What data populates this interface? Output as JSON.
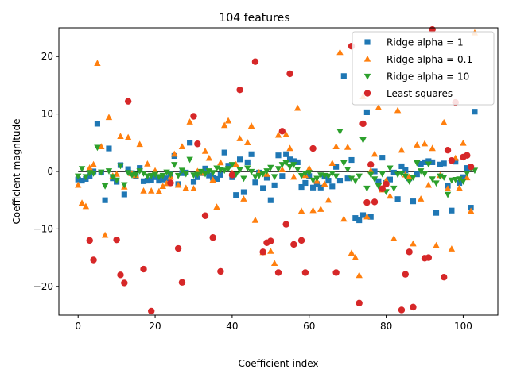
{
  "chart_data": {
    "type": "scatter",
    "title": "104 features",
    "xlabel": "Coefficient index",
    "ylabel": "Coefficient magnitude",
    "xlim": [
      -5,
      109
    ],
    "ylim": [
      -25,
      25
    ],
    "xticks": [
      0,
      20,
      40,
      60,
      80,
      100
    ],
    "yticks": [
      -20,
      -10,
      0,
      10,
      20
    ],
    "hline": 0,
    "legend_position": "top-right",
    "series": [
      {
        "name": "Ridge alpha = 1",
        "marker": "square",
        "color": "#1f77b4",
        "x": [
          0,
          1,
          2,
          3,
          4,
          5,
          6,
          7,
          8,
          9,
          10,
          11,
          12,
          13,
          14,
          15,
          16,
          17,
          18,
          19,
          20,
          21,
          22,
          23,
          24,
          25,
          26,
          27,
          28,
          29,
          30,
          31,
          32,
          33,
          34,
          35,
          36,
          37,
          38,
          39,
          40,
          41,
          42,
          43,
          44,
          45,
          46,
          47,
          48,
          49,
          50,
          51,
          52,
          53,
          54,
          55,
          56,
          57,
          58,
          59,
          60,
          61,
          62,
          63,
          64,
          65,
          66,
          67,
          68,
          69,
          70,
          71,
          72,
          73,
          74,
          75,
          76,
          77,
          78,
          79,
          80,
          81,
          82,
          83,
          84,
          85,
          86,
          87,
          88,
          89,
          90,
          91,
          92,
          93,
          94,
          95,
          96,
          97,
          98,
          99,
          100,
          101,
          102,
          103
        ],
        "y": [
          -1.4,
          -1.6,
          -1.3,
          -0.8,
          0.0,
          8.3,
          -0.2,
          -5.0,
          4.0,
          -1.2,
          -1.8,
          1.1,
          -4.0,
          0.4,
          -0.3,
          -0.8,
          0.6,
          -1.7,
          -1.6,
          -1.5,
          -1.0,
          -1.6,
          -1.4,
          -1.2,
          -0.5,
          2.7,
          -2.2,
          -0.3,
          -0.2,
          5.0,
          -1.8,
          -1.0,
          -0.3,
          0.5,
          -0.7,
          -1.1,
          -1.3,
          -0.6,
          3.3,
          1.0,
          -1.0,
          -4.1,
          2.1,
          -3.6,
          1.6,
          3.0,
          -1.9,
          -0.2,
          -2.9,
          -1.1,
          -5.0,
          -2.4,
          2.8,
          -0.8,
          3.0,
          2.1,
          1.8,
          1.6,
          -2.7,
          -2.0,
          -0.8,
          -2.8,
          -2.2,
          -2.8,
          -0.9,
          -1.6,
          -2.6,
          0.8,
          -1.6,
          16.6,
          -1.2,
          2.0,
          -8.1,
          -8.5,
          -7.6,
          10.3,
          -7.9,
          0.0,
          -1.7,
          2.4,
          -2.0,
          -1.4,
          -0.2,
          -4.8,
          0.9,
          0.2,
          -1.2,
          -5.2,
          -0.5,
          1.3,
          1.6,
          1.8,
          1.6,
          -7.2,
          1.2,
          1.4,
          -2.5,
          -6.8,
          1.7,
          -2.0,
          -1.0,
          0.6,
          -6.3,
          10.4
        ]
      },
      {
        "name": "Ridge alpha = 0.1",
        "marker": "triangle-up",
        "color": "#ff7f0e",
        "x": [
          0,
          1,
          2,
          3,
          4,
          5,
          6,
          7,
          8,
          9,
          10,
          11,
          12,
          13,
          14,
          15,
          16,
          17,
          18,
          19,
          20,
          21,
          22,
          23,
          24,
          25,
          26,
          27,
          28,
          29,
          30,
          31,
          32,
          33,
          34,
          35,
          36,
          37,
          38,
          39,
          40,
          41,
          42,
          43,
          44,
          45,
          46,
          47,
          48,
          49,
          50,
          51,
          52,
          53,
          54,
          55,
          56,
          57,
          58,
          59,
          60,
          61,
          62,
          63,
          64,
          65,
          66,
          67,
          68,
          69,
          70,
          71,
          72,
          73,
          74,
          75,
          76,
          77,
          78,
          79,
          80,
          81,
          82,
          83,
          84,
          85,
          86,
          87,
          88,
          89,
          90,
          91,
          92,
          93,
          94,
          95,
          96,
          97,
          98,
          99,
          100,
          101,
          102,
          103
        ],
        "y": [
          -2.4,
          -5.5,
          -6.1,
          0.6,
          1.2,
          18.8,
          4.3,
          -11.1,
          9.4,
          -0.8,
          -0.5,
          6.1,
          -2.7,
          5.9,
          -0.4,
          -0.7,
          4.7,
          -3.4,
          1.3,
          -3.4,
          0.1,
          -3.5,
          -2.6,
          -2.1,
          -1.0,
          3.0,
          -2.4,
          4.3,
          -2.9,
          8.6,
          -3.0,
          0.0,
          -0.3,
          3.5,
          2.3,
          -1.5,
          -6.2,
          1.5,
          8.0,
          8.8,
          -0.3,
          1.2,
          5.7,
          -4.8,
          5.0,
          7.9,
          -8.5,
          -0.2,
          -14.1,
          -0.5,
          -13.9,
          -16.0,
          6.3,
          0.3,
          6.4,
          4.0,
          -1.0,
          11.0,
          -6.9,
          -0.7,
          0.5,
          -6.8,
          -1.7,
          -6.6,
          -2.2,
          -5.0,
          1.4,
          4.3,
          20.7,
          -8.3,
          4.2,
          -14.2,
          -15.0,
          -18.1,
          13.0,
          -7.9,
          0.1,
          3.0,
          11.1,
          -3.2,
          -1.6,
          -4.3,
          -11.7,
          10.6,
          3.7,
          -0.6,
          -1.0,
          -12.6,
          4.6,
          -4.8,
          4.8,
          -2.4,
          4.0,
          -12.9,
          -0.7,
          8.5,
          -3.0,
          -13.5,
          2.3,
          -2.9,
          4.9,
          -1.1,
          -6.9,
          24.1
        ]
      },
      {
        "name": "Ridge alpha = 10",
        "marker": "triangle-down",
        "color": "#2ca02c",
        "x": [
          0,
          1,
          2,
          3,
          4,
          5,
          6,
          7,
          8,
          9,
          10,
          11,
          12,
          13,
          14,
          15,
          16,
          17,
          18,
          19,
          20,
          21,
          22,
          23,
          24,
          25,
          26,
          27,
          28,
          29,
          30,
          31,
          32,
          33,
          34,
          35,
          36,
          37,
          38,
          39,
          40,
          41,
          42,
          43,
          44,
          45,
          46,
          47,
          48,
          49,
          50,
          51,
          52,
          53,
          54,
          55,
          56,
          57,
          58,
          59,
          60,
          61,
          62,
          63,
          64,
          65,
          66,
          67,
          68,
          69,
          70,
          71,
          72,
          73,
          74,
          75,
          76,
          77,
          78,
          79,
          80,
          81,
          82,
          83,
          84,
          85,
          86,
          87,
          88,
          89,
          90,
          91,
          92,
          93,
          94,
          95,
          96,
          97,
          98,
          99,
          100,
          101,
          102,
          103
        ],
        "y": [
          -0.8,
          0.5,
          -0.9,
          -0.2,
          -0.3,
          4.2,
          -0.1,
          -2.5,
          0.1,
          -0.9,
          -1.5,
          1.0,
          -2.3,
          -0.2,
          -0.6,
          -0.5,
          0.1,
          -0.3,
          -0.8,
          -0.7,
          -0.5,
          -0.9,
          -0.7,
          -0.1,
          -0.5,
          1.2,
          -0.7,
          0.2,
          -0.4,
          2.1,
          -0.6,
          -0.5,
          0.0,
          -0.4,
          0.1,
          -0.2,
          0.6,
          0.3,
          0.2,
          0.5,
          1.2,
          -0.5,
          0.3,
          -1.2,
          0.6,
          0.0,
          -0.9,
          -0.7,
          -0.4,
          0.1,
          0.7,
          -0.9,
          0.5,
          1.2,
          1.5,
          0.8,
          1.2,
          0.4,
          -0.7,
          -0.3,
          -0.2,
          -1.5,
          -1.2,
          -0.6,
          -0.7,
          -0.8,
          -0.3,
          -0.8,
          7.0,
          1.5,
          0.4,
          -1.2,
          -1.6,
          -0.8,
          5.5,
          -2.9,
          -0.5,
          -1.3,
          -2.5,
          -0.4,
          -3.5,
          0.6,
          -2.9,
          -0.5,
          -0.3,
          -0.8,
          -1.7,
          -1.0,
          1.5,
          0.1,
          -0.4,
          1.3,
          -1.3,
          -2.0,
          -0.8,
          -1.0,
          -4.0,
          -1.5,
          -1.4,
          -1.3,
          -1.7,
          -0.3,
          0.6,
          0.2
        ]
      },
      {
        "name": "Least squares",
        "marker": "circle",
        "color": "#d62728",
        "x": [
          3,
          4,
          10,
          11,
          12,
          13,
          17,
          19,
          24,
          26,
          27,
          30,
          31,
          33,
          35,
          37,
          40,
          42,
          46,
          48,
          49,
          50,
          52,
          53,
          54,
          55,
          56,
          58,
          59,
          61,
          67,
          71,
          73,
          74,
          75,
          76,
          77,
          79,
          80,
          84,
          85,
          86,
          87,
          90,
          91,
          92,
          95,
          96,
          97,
          98,
          100,
          101,
          102
        ],
        "y": [
          -12.0,
          -15.4,
          -11.9,
          -18.0,
          -19.4,
          12.2,
          -17.0,
          -24.3,
          -2.0,
          -13.4,
          -19.3,
          9.6,
          4.8,
          -7.7,
          -11.5,
          -17.4,
          -0.6,
          14.2,
          19.1,
          -14.0,
          -12.4,
          -12.1,
          -17.6,
          7.0,
          -9.2,
          17.0,
          -12.7,
          -12.0,
          -17.6,
          4.0,
          -17.6,
          21.8,
          -22.9,
          8.3,
          -5.4,
          1.2,
          -5.3,
          -3.0,
          -2.2,
          -24.1,
          -17.9,
          -14.0,
          -23.6,
          -15.1,
          -15.0,
          24.7,
          -18.4,
          3.7,
          1.9,
          12.0,
          2.5,
          2.8,
          0.8
        ]
      }
    ]
  }
}
